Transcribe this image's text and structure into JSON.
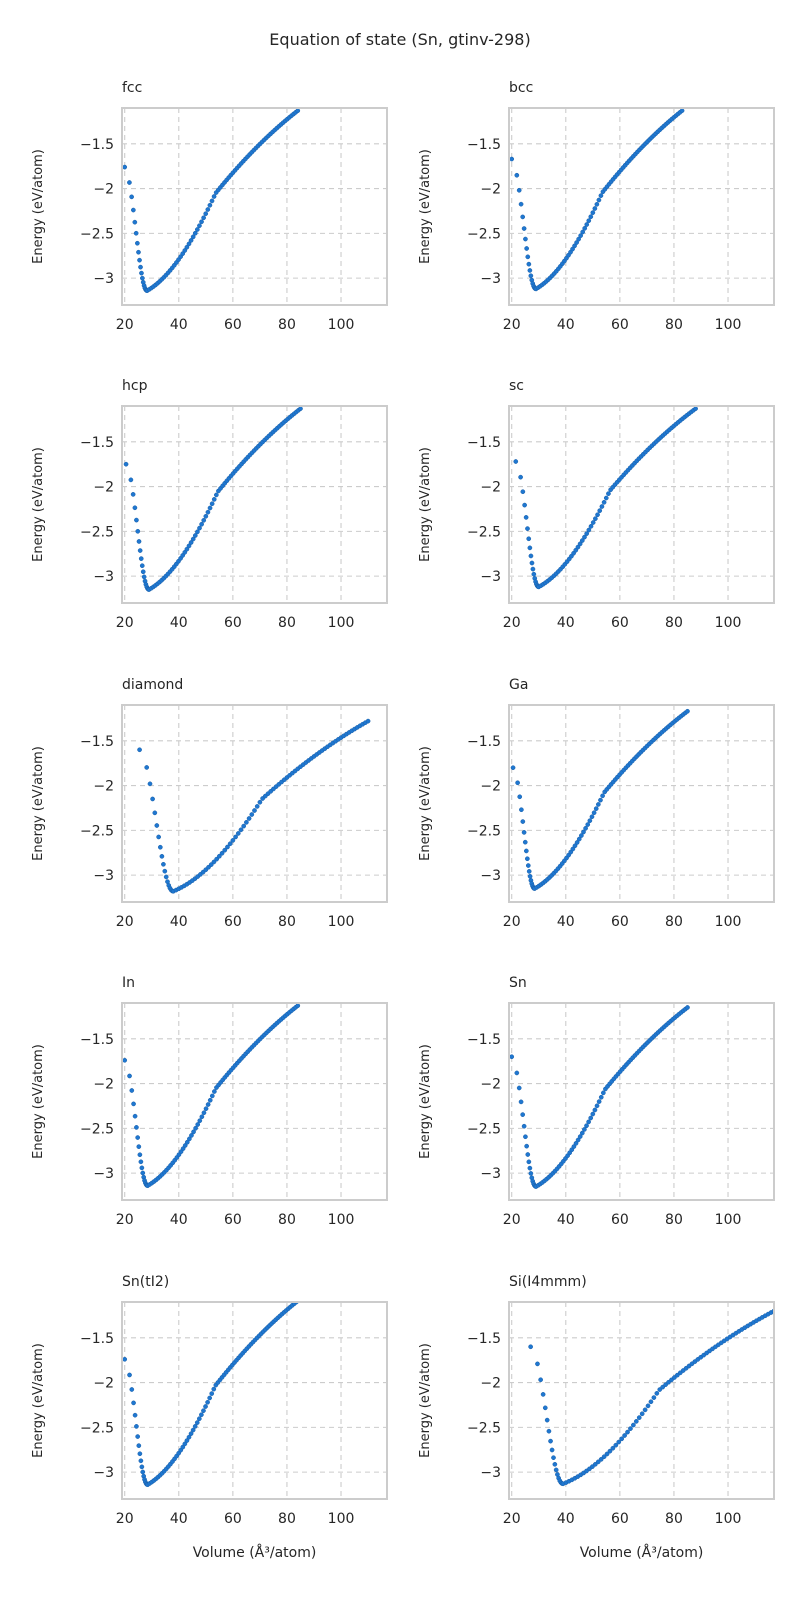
{
  "figure": {
    "title": "Equation of state (Sn, gtinv-298)",
    "point_color": "#1f77d0",
    "point_edge_color": "#1a5fa8",
    "grid_color": "#cccccc",
    "frame_color": "#cccccc"
  },
  "chart_data": [
    {
      "type": "scatter",
      "title": "fcc",
      "xlabel": "",
      "ylabel": "Energy (eV/atom)",
      "xlim": [
        19,
        117
      ],
      "ylim": [
        -3.3,
        -1.1
      ],
      "xticks": [
        20,
        40,
        60,
        80,
        100
      ],
      "yticks": [
        -3.0,
        -2.5,
        -2.0,
        -1.5
      ],
      "grid": true,
      "curve": {
        "x_start": 20.0,
        "x_end": 84.0,
        "x_min": 28.3,
        "y_min": -3.14,
        "y_end": -1.13,
        "n": 90
      }
    },
    {
      "type": "scatter",
      "title": "bcc",
      "xlabel": "",
      "ylabel": "Energy (eV/atom)",
      "xlim": [
        19,
        117
      ],
      "ylim": [
        -3.3,
        -1.1
      ],
      "xticks": [
        20,
        40,
        60,
        80,
        100
      ],
      "yticks": [
        -3.0,
        -2.5,
        -2.0,
        -1.5
      ],
      "grid": true,
      "curve": {
        "x_start": 20.0,
        "x_end": 83.0,
        "x_min": 29.0,
        "y_min": -3.12,
        "y_end": -1.13,
        "n": 90
      }
    },
    {
      "type": "scatter",
      "title": "hcp",
      "xlabel": "",
      "ylabel": "Energy (eV/atom)",
      "xlim": [
        19,
        117
      ],
      "ylim": [
        -3.3,
        -1.1
      ],
      "xticks": [
        20,
        40,
        60,
        80,
        100
      ],
      "yticks": [
        -3.0,
        -2.5,
        -2.0,
        -1.5
      ],
      "grid": true,
      "curve": {
        "x_start": 20.5,
        "x_end": 85.0,
        "x_min": 29.0,
        "y_min": -3.15,
        "y_end": -1.13,
        "n": 90
      }
    },
    {
      "type": "scatter",
      "title": "sc",
      "xlabel": "",
      "ylabel": "Energy (eV/atom)",
      "xlim": [
        19,
        117
      ],
      "ylim": [
        -3.3,
        -1.1
      ],
      "xticks": [
        20,
        40,
        60,
        80,
        100
      ],
      "yticks": [
        -3.0,
        -2.5,
        -2.0,
        -1.5
      ],
      "grid": true,
      "curve": {
        "x_start": 21.5,
        "x_end": 88.0,
        "x_min": 30.0,
        "y_min": -3.12,
        "y_end": -1.13,
        "n": 90
      }
    },
    {
      "type": "scatter",
      "title": "diamond",
      "xlabel": "",
      "ylabel": "Energy (eV/atom)",
      "xlim": [
        19,
        117
      ],
      "ylim": [
        -3.3,
        -1.1
      ],
      "xticks": [
        20,
        40,
        60,
        80,
        100
      ],
      "yticks": [
        -3.0,
        -2.5,
        -2.0,
        -1.5
      ],
      "grid": true,
      "curve": {
        "x_start": 25.5,
        "x_end": 110.0,
        "x_min": 38.0,
        "y_min": -3.18,
        "y_end": -1.28,
        "n": 90
      }
    },
    {
      "type": "scatter",
      "title": "Ga",
      "xlabel": "",
      "ylabel": "Energy (eV/atom)",
      "xlim": [
        19,
        117
      ],
      "ylim": [
        -3.3,
        -1.1
      ],
      "xticks": [
        20,
        40,
        60,
        80,
        100
      ],
      "yticks": [
        -3.0,
        -2.5,
        -2.0,
        -1.5
      ],
      "grid": true,
      "curve": {
        "x_start": 20.5,
        "x_end": 85.0,
        "x_min": 28.5,
        "y_min": -3.15,
        "y_end": -1.17,
        "n": 90
      }
    },
    {
      "type": "scatter",
      "title": "In",
      "xlabel": "",
      "ylabel": "Energy (eV/atom)",
      "xlim": [
        19,
        117
      ],
      "ylim": [
        -3.3,
        -1.1
      ],
      "xticks": [
        20,
        40,
        60,
        80,
        100
      ],
      "yticks": [
        -3.0,
        -2.5,
        -2.0,
        -1.5
      ],
      "grid": true,
      "curve": {
        "x_start": 20.0,
        "x_end": 84.0,
        "x_min": 28.5,
        "y_min": -3.14,
        "y_end": -1.13,
        "n": 90
      }
    },
    {
      "type": "scatter",
      "title": "Sn",
      "xlabel": "",
      "ylabel": "Energy (eV/atom)",
      "xlim": [
        19,
        117
      ],
      "ylim": [
        -3.3,
        -1.1
      ],
      "xticks": [
        20,
        40,
        60,
        80,
        100
      ],
      "yticks": [
        -3.0,
        -2.5,
        -2.0,
        -1.5
      ],
      "grid": true,
      "curve": {
        "x_start": 20.0,
        "x_end": 85.0,
        "x_min": 29.0,
        "y_min": -3.15,
        "y_end": -1.15,
        "n": 90
      }
    },
    {
      "type": "scatter",
      "title": "Sn(tI2)",
      "xlabel": "Volume (Å³/atom)",
      "ylabel": "Energy (eV/atom)",
      "xlim": [
        19,
        117
      ],
      "ylim": [
        -3.3,
        -1.1
      ],
      "xticks": [
        20,
        40,
        60,
        80,
        100
      ],
      "yticks": [
        -3.0,
        -2.5,
        -2.0,
        -1.5
      ],
      "grid": true,
      "curve": {
        "x_start": 20.0,
        "x_end": 83.5,
        "x_min": 28.5,
        "y_min": -3.14,
        "y_end": -1.1,
        "n": 90
      }
    },
    {
      "type": "scatter",
      "title": "Si(I4mmm)",
      "xlabel": "Volume (Å³/atom)",
      "ylabel": "Energy (eV/atom)",
      "xlim": [
        19,
        117
      ],
      "ylim": [
        -3.3,
        -1.1
      ],
      "xticks": [
        20,
        40,
        60,
        80,
        100
      ],
      "yticks": [
        -3.0,
        -2.5,
        -2.0,
        -1.5
      ],
      "grid": true,
      "curve": {
        "x_start": 27.0,
        "x_end": 117.0,
        "x_min": 39.0,
        "y_min": -3.13,
        "y_end": -1.2,
        "n": 90
      }
    }
  ]
}
